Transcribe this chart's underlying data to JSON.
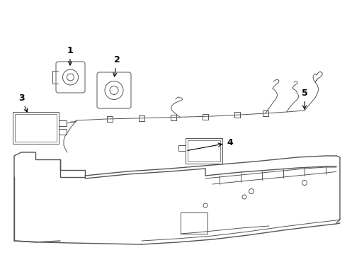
{
  "background_color": "#ffffff",
  "line_color": "#555555",
  "label_color": "#000000",
  "fig_width": 4.9,
  "fig_height": 3.6,
  "dpi": 100
}
